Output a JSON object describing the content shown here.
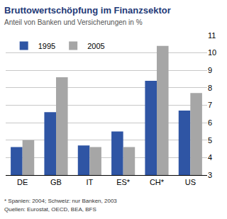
{
  "chart_data": {
    "type": "bar",
    "title": "Bruttowertschöpfung im Finanzsektor",
    "subtitle": "Anteil von Banken und Versicherungen in %",
    "categories": [
      "DE",
      "GB",
      "IT",
      "ES*",
      "CH*",
      "US"
    ],
    "series": [
      {
        "name": "1995",
        "color": "#2f55a4",
        "values": [
          4.6,
          6.6,
          4.7,
          5.5,
          8.4,
          6.7
        ]
      },
      {
        "name": "2005",
        "color": "#a6a6a6",
        "values": [
          5.0,
          8.6,
          4.6,
          4.6,
          10.4,
          7.7
        ]
      }
    ],
    "ylim": [
      3,
      11
    ],
    "yticks": [
      3,
      4,
      5,
      6,
      7,
      8,
      9,
      10,
      11
    ],
    "grid": true,
    "legend": "top left",
    "annotations": [
      "* Spanien: 2004; Schweiz: nur Banken, 2003",
      "Quellen: Eurostat, OECD, BEA, BFS"
    ]
  }
}
